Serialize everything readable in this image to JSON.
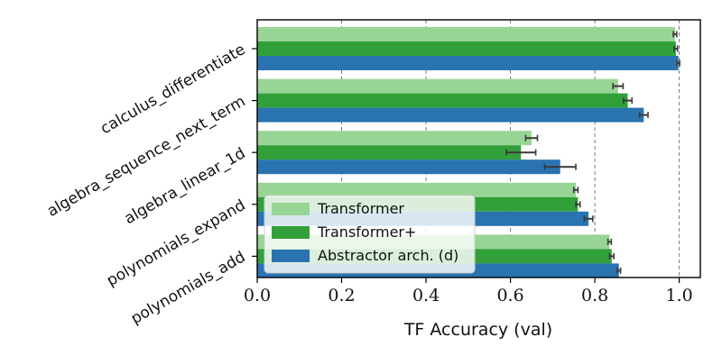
{
  "chart_data": {
    "type": "bar",
    "orientation": "horizontal",
    "categories": [
      "calculus_differentiate",
      "algebra_sequence_next_term",
      "algebra_linear_1d",
      "polynomials_expand",
      "polynomials_add"
    ],
    "series": [
      {
        "name": "Transformer",
        "color": "#98d594",
        "values": [
          0.99,
          0.855,
          0.65,
          0.755,
          0.835
        ],
        "errors": [
          0.004,
          0.012,
          0.014,
          0.005,
          0.004
        ]
      },
      {
        "name": "Transformer+",
        "color": "#32a03a",
        "values": [
          0.992,
          0.878,
          0.625,
          0.76,
          0.84
        ],
        "errors": [
          0.004,
          0.01,
          0.035,
          0.005,
          0.005
        ]
      },
      {
        "name": "Abstractor arch. (d)",
        "color": "#2a73b1",
        "values": [
          0.998,
          0.916,
          0.718,
          0.785,
          0.857
        ],
        "errors": [
          0.003,
          0.01,
          0.037,
          0.01,
          0.004
        ]
      }
    ],
    "xlabel": "TF Accuracy (val)",
    "ylabel": "",
    "xlim": [
      0.0,
      1.05
    ],
    "xticks": [
      "0.0",
      "0.2",
      "0.4",
      "0.6",
      "0.8",
      "1.0"
    ],
    "grid": "vertical-dashed",
    "legend_position": "lower-left"
  }
}
